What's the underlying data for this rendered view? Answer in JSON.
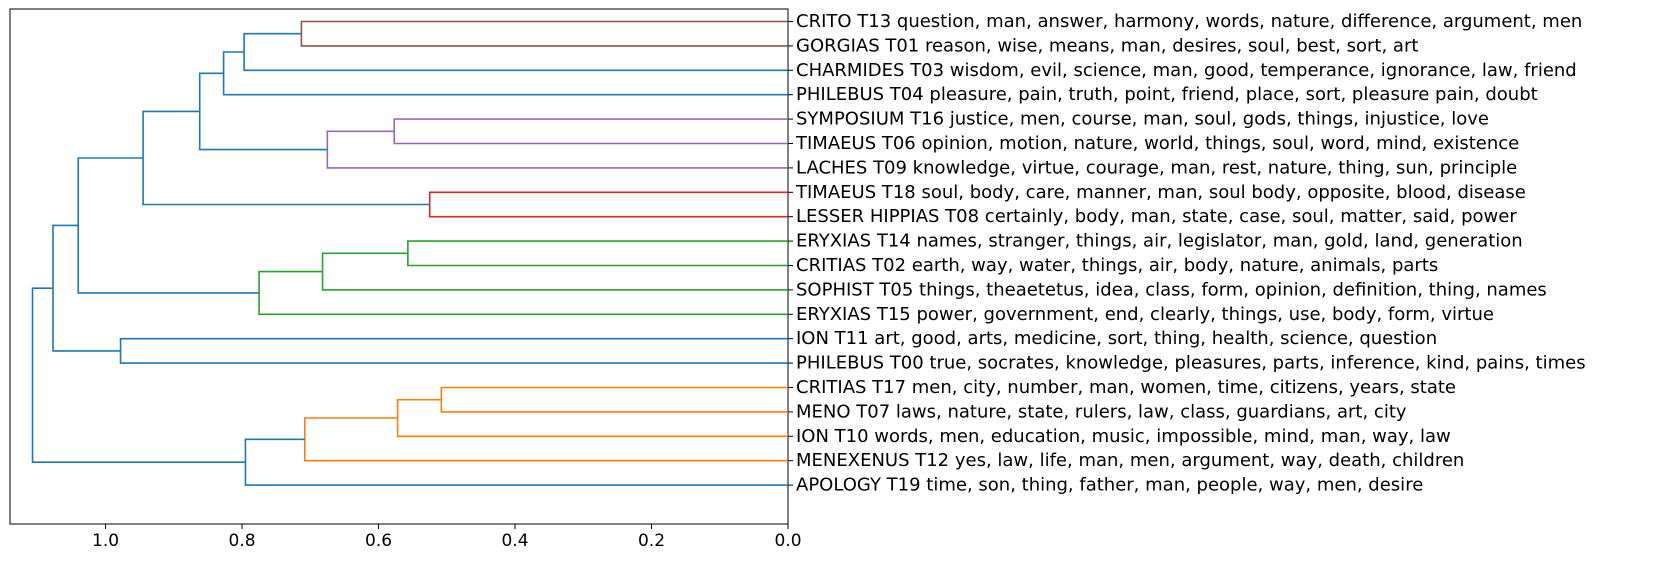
{
  "chart_data": {
    "type": "dendrogram",
    "orientation": "left",
    "xlim": [
      1.14,
      0.0
    ],
    "x_ticks": [
      {
        "value": 1.0,
        "label": "1.0"
      },
      {
        "value": 0.8,
        "label": "0.8"
      },
      {
        "value": 0.6,
        "label": "0.6"
      },
      {
        "value": 0.4,
        "label": "0.4"
      },
      {
        "value": 0.2,
        "label": "0.2"
      },
      {
        "value": 0.0,
        "label": "0.0"
      }
    ],
    "leaves": [
      "CRITO T13 question, man, answer, harmony, words, nature, difference, argument, men",
      "GORGIAS T01 reason, wise, means, man, desires, soul, best, sort, art",
      "CHARMIDES T03 wisdom, evil, science, man, good, temperance, ignorance, law, friend",
      "PHILEBUS T04 pleasure, pain, truth, point, friend, place, sort, pleasure pain, doubt",
      "SYMPOSIUM T16 justice, men, course, man, soul, gods, things, injustice, love",
      "TIMAEUS T06 opinion, motion, nature, world, things, soul, word, mind, existence",
      "LACHES T09 knowledge, virtue, courage, man, rest, nature, thing, sun, principle",
      "TIMAEUS T18 soul, body, care, manner, man, soul body, opposite, blood, disease",
      "LESSER HIPPIAS T08 certainly, body, man, state, case, soul, matter, said, power",
      "ERYXIAS T14 names, stranger, things, air, legislator, man, gold, land, generation",
      "CRITIAS T02 earth, way, water, things, air, body, nature, animals, parts",
      "SOPHIST T05 things, theaetetus, idea, class, form, opinion, definition, thing, names",
      "ERYXIAS T15 power, government, end, clearly, things, use, body, form, virtue",
      "ION T11 art, good, arts, medicine, sort, thing, health, science, question",
      "PHILEBUS T00 true, socrates, knowledge, pleasures, parts, inference, kind, pains, times",
      "CRITIAS T17 men, city, number, man, women, time, citizens, years, state",
      "MENO T07 laws, nature, state, rulers, law, class, guardians, art, city",
      "ION T10 words, men, education, music, impossible, mind, man, way, law",
      "MENEXENUS T12 yes, law, life, man, men, argument, way, death, children",
      "APOLOGY T19 time, son, thing, father, man, people, way, men, desire"
    ],
    "colors": {
      "brown": "#8c564b",
      "purple": "#9467bd",
      "red": "#d62728",
      "green": "#2ca02c",
      "orange": "#ff7f0e",
      "blue": "#1f77b4"
    },
    "merges": [
      {
        "id": "n1",
        "left": 0,
        "right": 1,
        "height": 0.713,
        "color": "brown"
      },
      {
        "id": "n2",
        "left": "n1",
        "right": 2,
        "height": 0.797,
        "color": "blue"
      },
      {
        "id": "n3",
        "left": "n2",
        "right": 3,
        "height": 0.827,
        "color": "blue"
      },
      {
        "id": "n4",
        "left": 4,
        "right": 5,
        "height": 0.577,
        "color": "purple"
      },
      {
        "id": "n5",
        "left": "n4",
        "right": 6,
        "height": 0.675,
        "color": "purple"
      },
      {
        "id": "n6",
        "left": "n3",
        "right": "n5",
        "height": 0.862,
        "color": "blue"
      },
      {
        "id": "n7",
        "left": 7,
        "right": 8,
        "height": 0.525,
        "color": "red"
      },
      {
        "id": "n8",
        "left": "n6",
        "right": "n7",
        "height": 0.945,
        "color": "blue"
      },
      {
        "id": "n9",
        "left": 9,
        "right": 10,
        "height": 0.557,
        "color": "green"
      },
      {
        "id": "n10",
        "left": "n9",
        "right": 11,
        "height": 0.682,
        "color": "green"
      },
      {
        "id": "n11",
        "left": "n10",
        "right": 12,
        "height": 0.775,
        "color": "green"
      },
      {
        "id": "n12",
        "left": "n8",
        "right": "n11",
        "height": 1.04,
        "color": "blue"
      },
      {
        "id": "n13",
        "left": 13,
        "right": 14,
        "height": 0.978,
        "color": "blue"
      },
      {
        "id": "n14",
        "left": "n12",
        "right": "n13",
        "height": 1.077,
        "color": "blue"
      },
      {
        "id": "n15",
        "left": 15,
        "right": 16,
        "height": 0.508,
        "color": "orange"
      },
      {
        "id": "n16",
        "left": "n15",
        "right": 17,
        "height": 0.572,
        "color": "orange"
      },
      {
        "id": "n17",
        "left": "n16",
        "right": 18,
        "height": 0.708,
        "color": "orange"
      },
      {
        "id": "n18",
        "left": "n17",
        "right": 19,
        "height": 0.795,
        "color": "blue"
      },
      {
        "id": "n19",
        "left": "n14",
        "right": "n18",
        "height": 1.107,
        "color": "blue"
      }
    ]
  }
}
